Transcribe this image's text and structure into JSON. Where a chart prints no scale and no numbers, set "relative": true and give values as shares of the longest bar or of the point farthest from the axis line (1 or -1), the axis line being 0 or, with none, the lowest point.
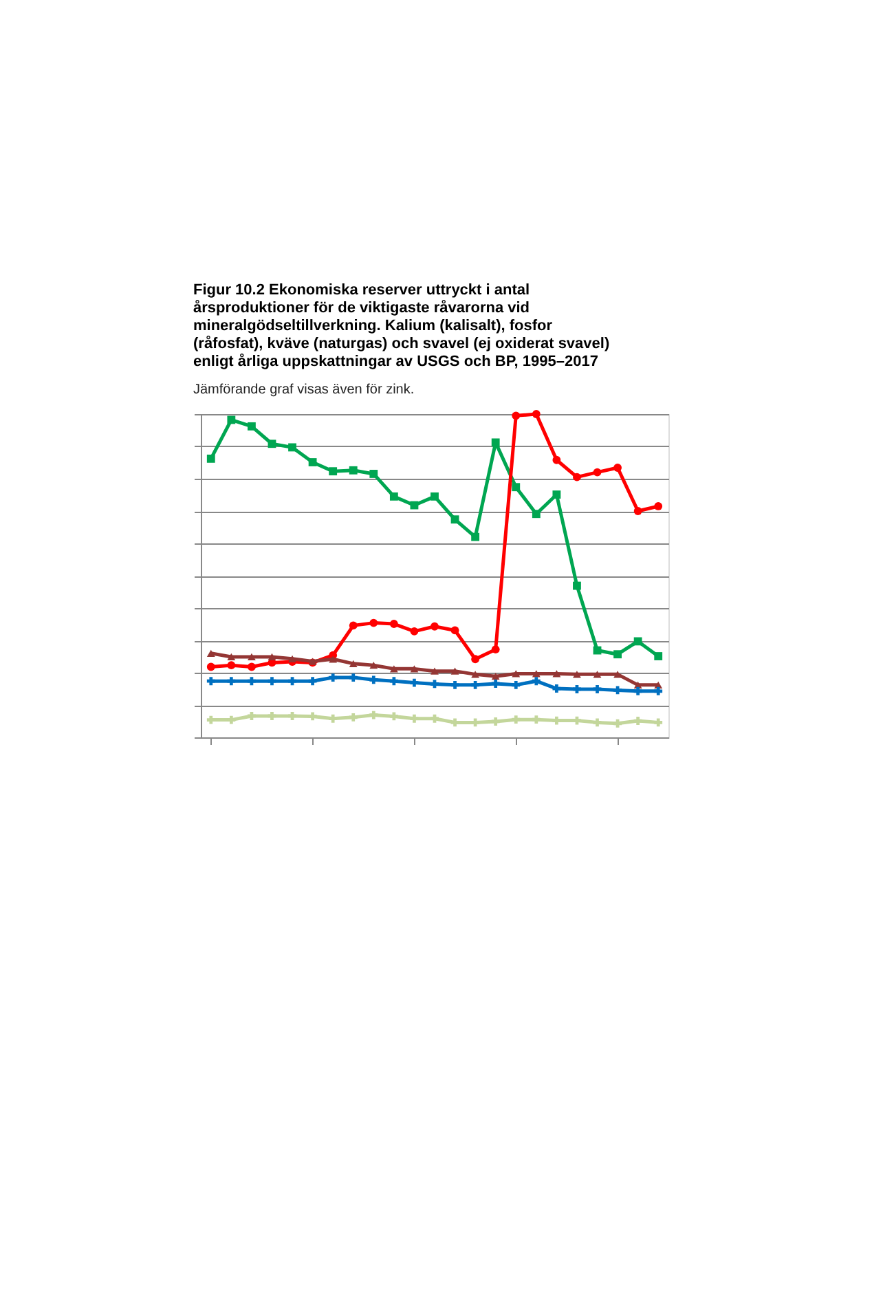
{
  "chart_data": {
    "type": "line",
    "relative": true,
    "grid": "y",
    "tick_labels": false,
    "title": "Figur 10.2 Ekonomiska reserver uttryckt i antal årsproduktioner för de viktigaste råvarorna vid mineralgödseltillverkning. Kalium (kalisalt), fosfor (råfosfat), kväve (naturgas) och svavel (ej oxiderat svavel) enligt årliga uppskattningar av USGS och BP, 1995–2017",
    "subtitle": "Jämförande graf visas även för zink.",
    "categories": [
      null,
      null,
      null,
      null,
      null,
      null,
      null,
      null,
      null,
      null,
      null,
      null,
      null,
      null,
      null,
      null,
      null,
      null,
      null,
      null,
      null,
      null,
      null
    ],
    "series": [
      {
        "color": "#00a651",
        "marker": "square",
        "values": [
          0.862,
          0.982,
          0.962,
          0.908,
          0.897,
          0.851,
          0.823,
          0.826,
          0.815,
          0.745,
          0.718,
          0.745,
          0.674,
          0.62,
          0.912,
          0.774,
          0.691,
          0.751,
          0.469,
          0.269,
          0.257,
          0.297,
          0.251
        ]
      },
      {
        "color": "#ff0000",
        "marker": "circle",
        "values": [
          0.218,
          0.223,
          0.218,
          0.231,
          0.234,
          0.231,
          0.254,
          0.346,
          0.354,
          0.351,
          0.328,
          0.343,
          0.331,
          0.242,
          0.272,
          0.995,
          1.0,
          0.858,
          0.805,
          0.82,
          0.834,
          0.7,
          0.715
        ]
      },
      {
        "color": "#943634",
        "marker": "triangle",
        "values": [
          0.26,
          0.249,
          0.249,
          0.249,
          0.243,
          0.235,
          0.242,
          0.228,
          0.223,
          0.212,
          0.212,
          0.205,
          0.205,
          0.195,
          0.189,
          0.197,
          0.197,
          0.197,
          0.195,
          0.195,
          0.195,
          0.162,
          0.162
        ]
      },
      {
        "color": "#0070c0",
        "marker": "cross",
        "values": [
          0.174,
          0.174,
          0.174,
          0.174,
          0.174,
          0.174,
          0.185,
          0.185,
          0.178,
          0.174,
          0.169,
          0.165,
          0.162,
          0.162,
          0.166,
          0.162,
          0.174,
          0.151,
          0.149,
          0.149,
          0.146,
          0.143,
          0.143
        ]
      },
      {
        "color": "#c3d69b",
        "marker": "cross",
        "values": [
          0.054,
          0.054,
          0.066,
          0.066,
          0.066,
          0.065,
          0.058,
          0.062,
          0.069,
          0.065,
          0.058,
          0.058,
          0.046,
          0.046,
          0.049,
          0.055,
          0.055,
          0.052,
          0.052,
          0.046,
          0.043,
          0.051,
          0.046
        ]
      }
    ]
  }
}
